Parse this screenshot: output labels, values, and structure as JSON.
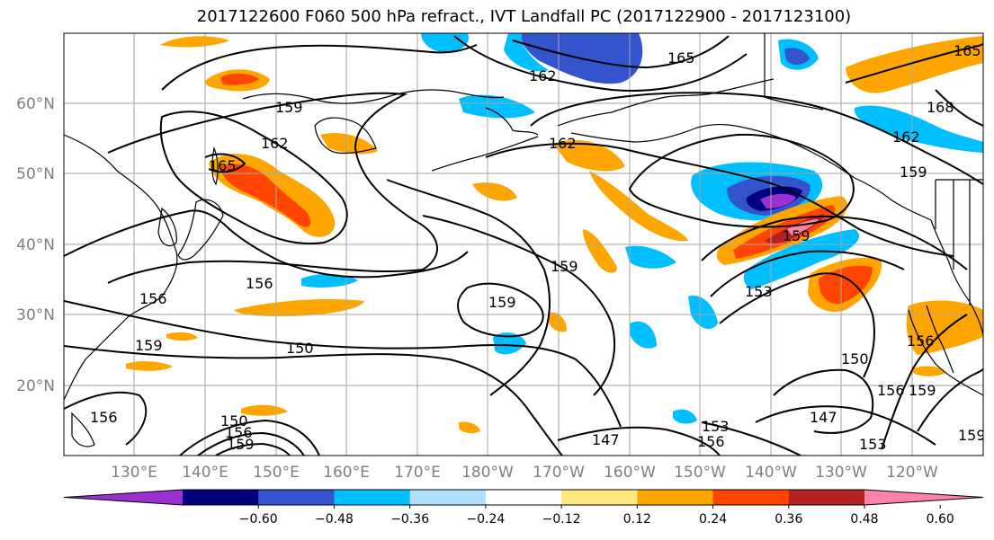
{
  "title": "2017122600 F060 500 hPa refract., IVT Landfall PC (2017122900 - 2017123100)",
  "lat_labels": [
    "60°N",
    "50°N",
    "40°N",
    "30°N",
    "20°N"
  ],
  "lon_labels": [
    "130°E",
    "140°E",
    "150°E",
    "160°E",
    "170°E",
    "180°W",
    "170°W",
    "160°W",
    "150°W",
    "140°W",
    "130°W",
    "120°W"
  ],
  "contour_labels": [
    "162",
    "165",
    "159",
    "162",
    "162",
    "165",
    "168",
    "162",
    "159",
    "165",
    "156",
    "156",
    "159",
    "159",
    "150",
    "159",
    "159",
    "153",
    "147",
    "153",
    "156",
    "150",
    "147",
    "153",
    "156",
    "156",
    "159",
    "159",
    "150",
    "156",
    "159",
    "156"
  ],
  "colorbar": {
    "ticks": [
      "−0.60",
      "−0.48",
      "−0.36",
      "−0.24",
      "−0.12",
      "0.12",
      "0.24",
      "0.36",
      "0.48",
      "0.60"
    ],
    "colors": [
      "#9b30d0",
      "#00007f",
      "#3354cc",
      "#00bfff",
      "#b0e2ff",
      "#ffffff",
      "#ffea80",
      "#ffa500",
      "#ff4500",
      "#b22222",
      "#ff82ab"
    ]
  }
}
